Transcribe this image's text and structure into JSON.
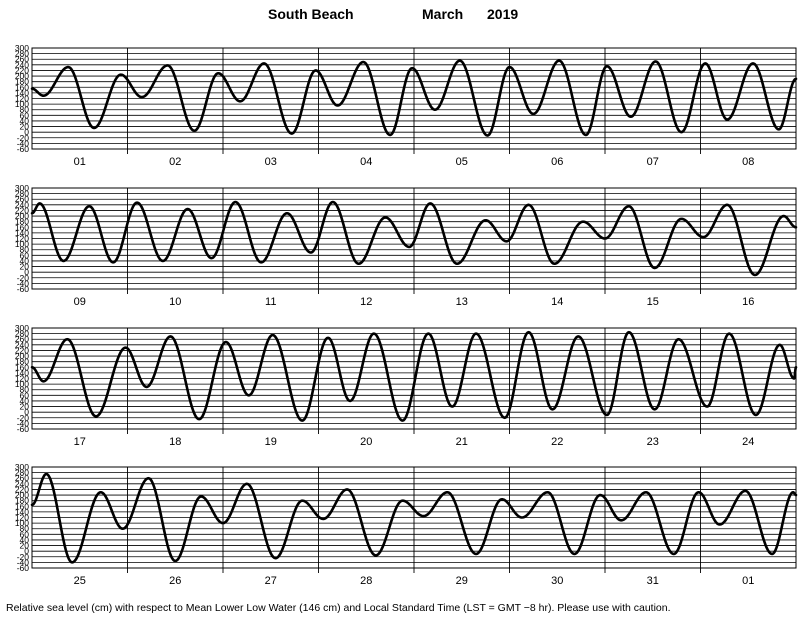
{
  "header": {
    "location": "South Beach",
    "month": "March",
    "year": "2019"
  },
  "footnote": "Relative sea level (cm) with respect to Mean Lower Low Water (146 cm) and Local Standard Time (LST = GMT −8 hr). Please use with caution.",
  "chart_data": {
    "type": "line",
    "ylabel": "",
    "ylim": [
      -60,
      300
    ],
    "y_ticks": [
      300,
      280,
      260,
      240,
      220,
      200,
      180,
      160,
      140,
      120,
      100,
      80,
      60,
      40,
      20,
      0,
      -20,
      -40,
      -60
    ],
    "rows": [
      {
        "day_labels": [
          "01",
          "02",
          "03",
          "04",
          "05",
          "06",
          "07",
          "08"
        ],
        "extrema": [
          {
            "day": 0.0,
            "level": 155
          },
          {
            "day": 0.12,
            "level": 130
          },
          {
            "day": 0.38,
            "level": 232
          },
          {
            "day": 0.65,
            "level": 15
          },
          {
            "day": 0.93,
            "level": 205
          },
          {
            "day": 1.15,
            "level": 125
          },
          {
            "day": 1.42,
            "level": 238
          },
          {
            "day": 1.7,
            "level": 5
          },
          {
            "day": 1.95,
            "level": 210
          },
          {
            "day": 2.18,
            "level": 110
          },
          {
            "day": 2.43,
            "level": 245
          },
          {
            "day": 2.72,
            "level": -5
          },
          {
            "day": 2.97,
            "level": 220
          },
          {
            "day": 3.2,
            "level": 95
          },
          {
            "day": 3.47,
            "level": 250
          },
          {
            "day": 3.75,
            "level": -10
          },
          {
            "day": 3.98,
            "level": 228
          },
          {
            "day": 4.22,
            "level": 80
          },
          {
            "day": 4.48,
            "level": 255
          },
          {
            "day": 4.77,
            "level": -12
          },
          {
            "day": 5.0,
            "level": 232
          },
          {
            "day": 5.25,
            "level": 65
          },
          {
            "day": 5.52,
            "level": 255
          },
          {
            "day": 5.8,
            "level": -10
          },
          {
            "day": 6.02,
            "level": 235
          },
          {
            "day": 6.27,
            "level": 55
          },
          {
            "day": 6.53,
            "level": 252
          },
          {
            "day": 6.8,
            "level": 0
          },
          {
            "day": 7.05,
            "level": 245
          },
          {
            "day": 7.28,
            "level": 45
          },
          {
            "day": 7.55,
            "level": 245
          },
          {
            "day": 7.82,
            "level": 10
          },
          {
            "day": 8.0,
            "level": 190
          }
        ]
      },
      {
        "day_labels": [
          "09",
          "10",
          "11",
          "12",
          "13",
          "14",
          "15",
          "16"
        ],
        "extrema": [
          {
            "day": 0.0,
            "level": 210
          },
          {
            "day": 0.08,
            "level": 245
          },
          {
            "day": 0.33,
            "level": 40
          },
          {
            "day": 0.6,
            "level": 235
          },
          {
            "day": 0.85,
            "level": 35
          },
          {
            "day": 1.1,
            "level": 248
          },
          {
            "day": 1.37,
            "level": 40
          },
          {
            "day": 1.63,
            "level": 225
          },
          {
            "day": 1.88,
            "level": 50
          },
          {
            "day": 2.13,
            "level": 250
          },
          {
            "day": 2.4,
            "level": 35
          },
          {
            "day": 2.67,
            "level": 210
          },
          {
            "day": 2.92,
            "level": 70
          },
          {
            "day": 3.15,
            "level": 250
          },
          {
            "day": 3.42,
            "level": 30
          },
          {
            "day": 3.7,
            "level": 195
          },
          {
            "day": 3.95,
            "level": 90
          },
          {
            "day": 4.17,
            "level": 245
          },
          {
            "day": 4.45,
            "level": 30
          },
          {
            "day": 4.75,
            "level": 185
          },
          {
            "day": 4.97,
            "level": 110
          },
          {
            "day": 5.2,
            "level": 240
          },
          {
            "day": 5.47,
            "level": 30
          },
          {
            "day": 5.77,
            "level": 180
          },
          {
            "day": 6.0,
            "level": 120
          },
          {
            "day": 6.25,
            "level": 235
          },
          {
            "day": 6.52,
            "level": 15
          },
          {
            "day": 6.8,
            "level": 190
          },
          {
            "day": 7.03,
            "level": 125
          },
          {
            "day": 7.28,
            "level": 240
          },
          {
            "day": 7.57,
            "level": -10
          },
          {
            "day": 7.87,
            "level": 200
          },
          {
            "day": 8.0,
            "level": 160
          }
        ]
      },
      {
        "day_labels": [
          "17",
          "18",
          "19",
          "20",
          "21",
          "22",
          "23",
          "24"
        ],
        "extrema": [
          {
            "day": 0.0,
            "level": 160
          },
          {
            "day": 0.12,
            "level": 110
          },
          {
            "day": 0.37,
            "level": 260
          },
          {
            "day": 0.67,
            "level": -15
          },
          {
            "day": 0.98,
            "level": 230
          },
          {
            "day": 1.2,
            "level": 90
          },
          {
            "day": 1.45,
            "level": 270
          },
          {
            "day": 1.75,
            "level": -25
          },
          {
            "day": 2.03,
            "level": 250
          },
          {
            "day": 2.27,
            "level": 60
          },
          {
            "day": 2.52,
            "level": 275
          },
          {
            "day": 2.83,
            "level": -30
          },
          {
            "day": 3.1,
            "level": 265
          },
          {
            "day": 3.33,
            "level": 40
          },
          {
            "day": 3.58,
            "level": 280
          },
          {
            "day": 3.88,
            "level": -30
          },
          {
            "day": 4.15,
            "level": 280
          },
          {
            "day": 4.4,
            "level": 20
          },
          {
            "day": 4.65,
            "level": 280
          },
          {
            "day": 4.95,
            "level": -20
          },
          {
            "day": 5.2,
            "level": 285
          },
          {
            "day": 5.45,
            "level": 10
          },
          {
            "day": 5.72,
            "level": 270
          },
          {
            "day": 6.02,
            "level": -10
          },
          {
            "day": 6.25,
            "level": 285
          },
          {
            "day": 6.52,
            "level": 10
          },
          {
            "day": 6.77,
            "level": 260
          },
          {
            "day": 7.07,
            "level": 20
          },
          {
            "day": 7.3,
            "level": 280
          },
          {
            "day": 7.58,
            "level": -10
          },
          {
            "day": 7.83,
            "level": 240
          },
          {
            "day": 7.98,
            "level": 120
          },
          {
            "day": 8.0,
            "level": 160
          }
        ]
      },
      {
        "day_labels": [
          "25",
          "26",
          "27",
          "28",
          "29",
          "30",
          "31",
          "01"
        ],
        "extrema": [
          {
            "day": 0.0,
            "level": 165
          },
          {
            "day": 0.15,
            "level": 275
          },
          {
            "day": 0.42,
            "level": -40
          },
          {
            "day": 0.72,
            "level": 210
          },
          {
            "day": 0.95,
            "level": 80
          },
          {
            "day": 1.22,
            "level": 260
          },
          {
            "day": 1.5,
            "level": -35
          },
          {
            "day": 1.77,
            "level": 195
          },
          {
            "day": 2.0,
            "level": 100
          },
          {
            "day": 2.25,
            "level": 240
          },
          {
            "day": 2.55,
            "level": -25
          },
          {
            "day": 2.83,
            "level": 180
          },
          {
            "day": 3.05,
            "level": 115
          },
          {
            "day": 3.3,
            "level": 220
          },
          {
            "day": 3.6,
            "level": -15
          },
          {
            "day": 3.88,
            "level": 180
          },
          {
            "day": 4.1,
            "level": 125
          },
          {
            "day": 4.35,
            "level": 210
          },
          {
            "day": 4.65,
            "level": -10
          },
          {
            "day": 4.92,
            "level": 185
          },
          {
            "day": 5.13,
            "level": 120
          },
          {
            "day": 5.4,
            "level": 210
          },
          {
            "day": 5.68,
            "level": -10
          },
          {
            "day": 5.95,
            "level": 200
          },
          {
            "day": 6.17,
            "level": 110
          },
          {
            "day": 6.43,
            "level": 210
          },
          {
            "day": 6.72,
            "level": -10
          },
          {
            "day": 6.98,
            "level": 210
          },
          {
            "day": 7.2,
            "level": 95
          },
          {
            "day": 7.47,
            "level": 215
          },
          {
            "day": 7.75,
            "level": -10
          },
          {
            "day": 7.97,
            "level": 210
          },
          {
            "day": 8.0,
            "level": 200
          }
        ]
      }
    ]
  }
}
